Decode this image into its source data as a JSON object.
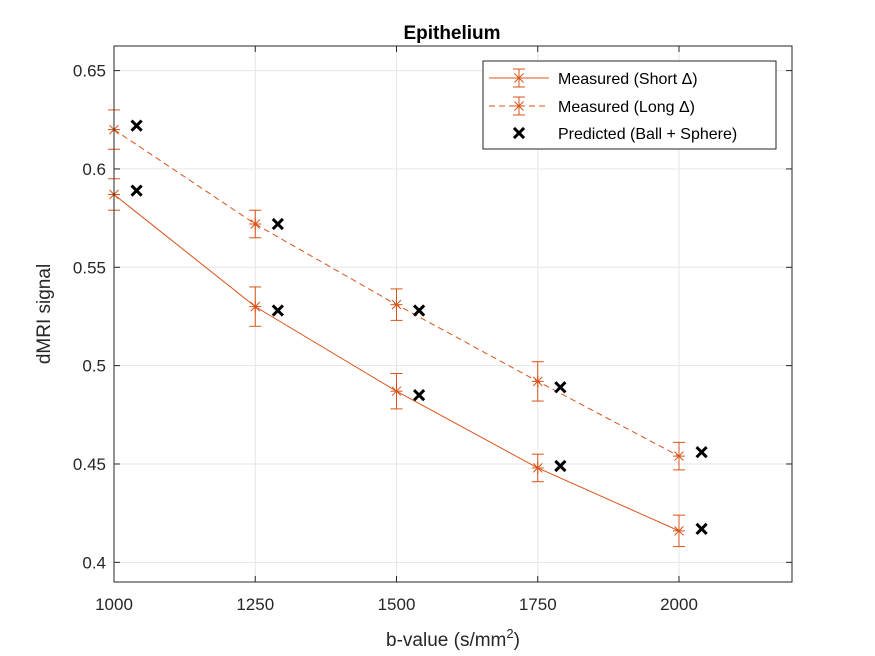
{
  "chart_data": {
    "type": "line",
    "title": "Epithelium",
    "xlabel": "b-value (s/mm",
    "xlabel_sup": "2",
    "xlabel_close": ")",
    "ylabel": "dMRI signal",
    "xlim": [
      1000,
      2200
    ],
    "ylim": [
      0.39,
      0.6625
    ],
    "xticks": [
      1000,
      1250,
      1500,
      1750,
      2000
    ],
    "xtick_labels": [
      "1000",
      "1250",
      "1500",
      "1750",
      "2000"
    ],
    "yticks": [
      0.4,
      0.45,
      0.5,
      0.55,
      0.6,
      0.65
    ],
    "ytick_labels": [
      "0.4",
      "0.45",
      "0.5",
      "0.55",
      "0.6",
      "0.65"
    ],
    "grid": true,
    "legend_position": "top-right",
    "series": [
      {
        "name": "Measured (Short Δ)",
        "style": "solid",
        "marker": "asterisk",
        "color": "#D95319",
        "x": [
          1000,
          1250,
          1500,
          1750,
          2000
        ],
        "y": [
          0.587,
          0.53,
          0.487,
          0.448,
          0.416
        ],
        "err": [
          0.008,
          0.01,
          0.009,
          0.007,
          0.008
        ]
      },
      {
        "name": "Measured (Long Δ)",
        "style": "dashed",
        "marker": "asterisk",
        "color": "#D95319",
        "x": [
          1000,
          1250,
          1500,
          1750,
          2000
        ],
        "y": [
          0.62,
          0.572,
          0.531,
          0.492,
          0.454
        ],
        "err": [
          0.01,
          0.007,
          0.008,
          0.01,
          0.007
        ]
      },
      {
        "name": "Predicted (Ball + Sphere)",
        "style": "none",
        "marker": "x",
        "color": "#000000",
        "x": [
          1040,
          1040,
          1290,
          1290,
          1540,
          1540,
          1790,
          1790,
          2040,
          2040
        ],
        "y": [
          0.589,
          0.622,
          0.528,
          0.572,
          0.485,
          0.528,
          0.449,
          0.489,
          0.417,
          0.456
        ]
      }
    ]
  }
}
